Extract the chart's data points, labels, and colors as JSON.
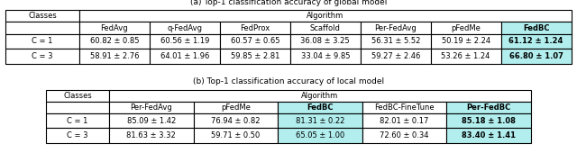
{
  "title_a": "(a) Top-1 classification accuracy of global model",
  "title_b": "(b) Top-1 classification accuracy of local model",
  "table_a": {
    "col_headers": [
      "FedAvg",
      "q-FedAvg",
      "FedProx",
      "Scaffold",
      "Per-FedAvg",
      "pFedMe",
      "FedBC"
    ],
    "data": [
      [
        "C = 1",
        "60.82 ± 0.85",
        "60.56 ± 1.19",
        "60.57 ± 0.65",
        "36.08 ± 3.25",
        "56.31 ± 5.52",
        "50.19 ± 2.24",
        "61.12 ± 1.24"
      ],
      [
        "C = 3",
        "58.91 ± 2.76",
        "64.01 ± 1.96",
        "59.85 ± 2.81",
        "33.04 ± 9.85",
        "59.27 ± 2.46",
        "53.26 ± 1.24",
        "66.80 ± 1.07"
      ]
    ],
    "bold_col": 7,
    "highlight_color": "#b2eeee"
  },
  "table_b": {
    "col_headers": [
      "Per-FedAvg",
      "pFedMe",
      "FedBC",
      "FedBC-FineTune",
      "Per-FedBC"
    ],
    "data": [
      [
        "C = 1",
        "85.09 ± 1.42",
        "76.94 ± 0.82",
        "81.31 ± 0.22",
        "82.01 ± 0.17",
        "85.18 ± 1.08"
      ],
      [
        "C = 3",
        "81.63 ± 3.32",
        "59.71 ± 0.50",
        "65.05 ± 1.00",
        "72.60 ± 0.34",
        "83.40 ± 1.41"
      ]
    ],
    "bold_col": 5,
    "highlight_color": "#b2eeee"
  },
  "font_size": 6.0,
  "background_color": "#ffffff"
}
